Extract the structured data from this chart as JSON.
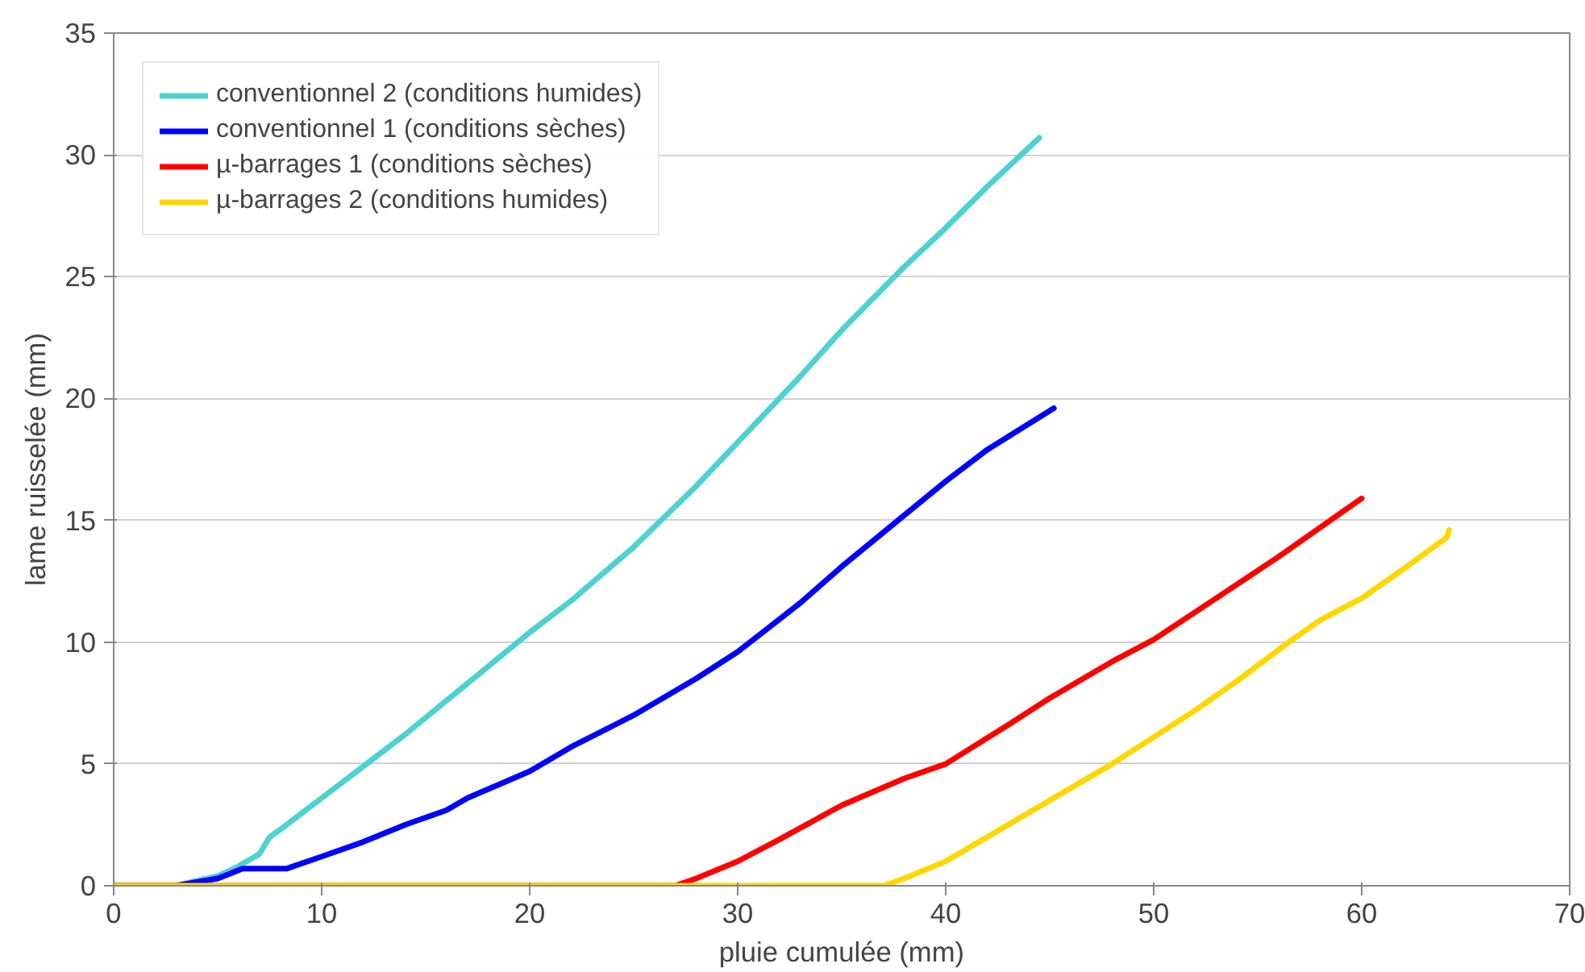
{
  "chart_data": {
    "type": "line",
    "xlabel": "pluie cumulée (mm)",
    "ylabel": "lame ruisselée (mm)",
    "xlim": [
      0,
      70
    ],
    "xticks": [
      0,
      10,
      20,
      30,
      40,
      50,
      60,
      70
    ],
    "ylim": [
      0,
      35
    ],
    "yticks": [
      0,
      5,
      10,
      15,
      20,
      25,
      30,
      35
    ],
    "grid": "y",
    "legend": "top left",
    "line_style": "solid",
    "marker": "none",
    "series": [
      {
        "name": "conventionnel 2 (conditions humides)",
        "color": "#4dd2d2",
        "x": [
          0,
          3,
          5,
          6,
          7,
          7.5,
          8,
          10,
          12,
          14,
          16,
          18,
          20,
          22,
          25,
          28,
          30,
          33,
          35,
          38,
          40,
          42,
          44.5
        ],
        "values": [
          0,
          0,
          0.4,
          0.8,
          1.3,
          2.0,
          2.3,
          3.6,
          4.9,
          6.2,
          7.6,
          9.0,
          10.4,
          11.7,
          13.9,
          16.4,
          18.2,
          20.9,
          22.8,
          25.4,
          27.0,
          28.7,
          30.7
        ]
      },
      {
        "name": "conventionnel 1 (conditions sèches)",
        "color": "#0000ff",
        "x": [
          0,
          3,
          5,
          6.2,
          8.3,
          10,
          12,
          14,
          16,
          17,
          20,
          22,
          25,
          28,
          30,
          33,
          35,
          38,
          40,
          42,
          45.2
        ],
        "values": [
          0,
          0,
          0.3,
          0.7,
          0.7,
          1.2,
          1.8,
          2.5,
          3.1,
          3.6,
          4.7,
          5.7,
          7.0,
          8.5,
          9.6,
          11.6,
          13.1,
          15.2,
          16.6,
          17.9,
          19.6
        ]
      },
      {
        "name": "µ-barrages 1 (conditions sèches)",
        "color": "#ff0000",
        "x": [
          0,
          27,
          28,
          30,
          32,
          35,
          38,
          40,
          43,
          45,
          48,
          50,
          53,
          56,
          58,
          60
        ],
        "values": [
          0,
          0,
          0.3,
          1.0,
          1.9,
          3.3,
          4.4,
          5.0,
          6.6,
          7.7,
          9.2,
          10.1,
          11.8,
          13.5,
          14.7,
          15.9
        ]
      },
      {
        "name": "µ-barrages 2 (conditions humides)",
        "color": "#ffd700",
        "x": [
          0,
          37,
          38,
          40,
          42,
          44,
          46,
          48,
          50,
          52,
          54,
          56.5,
          58,
          60,
          62,
          64.1,
          64.2
        ],
        "values": [
          0,
          0,
          0.3,
          1.0,
          2.0,
          3.0,
          4.0,
          5.0,
          6.1,
          7.2,
          8.4,
          10.0,
          10.9,
          11.8,
          13.0,
          14.3,
          14.6
        ]
      }
    ]
  }
}
